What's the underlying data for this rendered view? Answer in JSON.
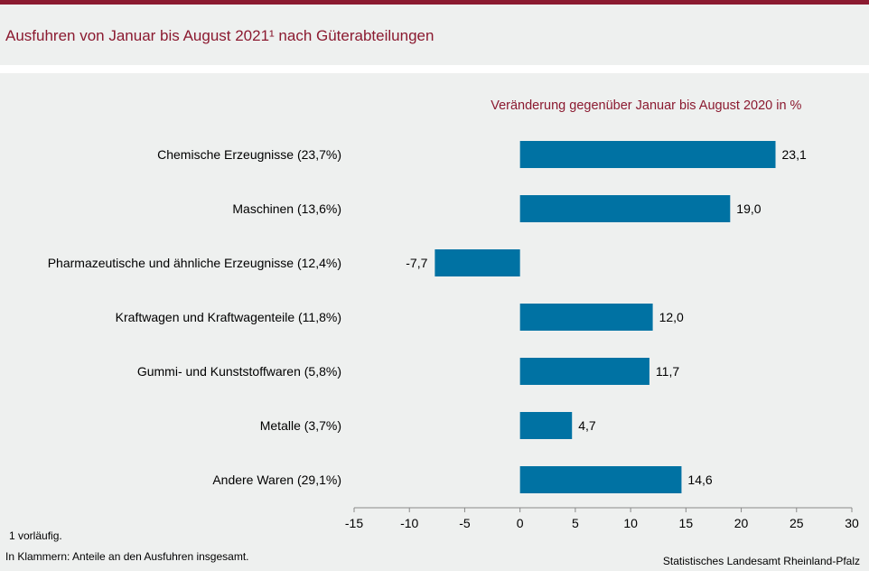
{
  "header": {
    "title": "Ausfuhren von Januar bis August 2021¹ nach Güterabteilungen"
  },
  "footnotes": {
    "note1": "1 vorläufig.",
    "note2": "In Klammern: Anteile an den Ausfuhren insgesamt.",
    "source": "Statistisches Landesamt Rheinland-Pfalz"
  },
  "chart_data": {
    "type": "bar",
    "orientation": "horizontal",
    "title": "Ausfuhren von Januar bis August 2021¹ nach Güterabteilungen",
    "subtitle": "Veränderung gegenüber Januar bis August 2020 in %",
    "categories": [
      "Chemische Erzeugnisse (23,7%)",
      "Maschinen (13,6%)",
      "Pharmazeutische und ähnliche Erzeugnisse (12,4%)",
      "Kraftwagen und Kraftwagenteile (11,8%)",
      "Gummi- und Kunststoffwaren (5,8%)",
      "Metalle (3,7%)",
      "Andere Waren (29,1%)"
    ],
    "values": [
      23.1,
      19.0,
      -7.7,
      12.0,
      11.7,
      4.7,
      14.6
    ],
    "value_labels": [
      "23,1",
      "19,0",
      "-7,7",
      "12,0",
      "11,7",
      "4,7",
      "14,6"
    ],
    "xlim": [
      -15,
      30
    ],
    "xticks": [
      -15,
      -10,
      -5,
      0,
      5,
      10,
      15,
      20,
      25,
      30
    ],
    "xtick_labels": [
      "-15",
      "-10",
      "-5",
      "0",
      "5",
      "10",
      "15",
      "20",
      "25",
      "30"
    ],
    "bar_color": "#0072a3",
    "accent_color": "#8b1a30"
  }
}
